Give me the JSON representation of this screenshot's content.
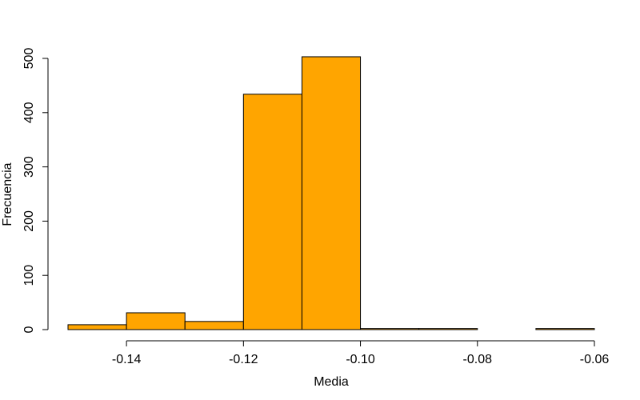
{
  "chart_data": {
    "type": "bar",
    "title": "",
    "xlabel": "Media",
    "ylabel": "Frecuencia",
    "bins": [
      {
        "start": -0.15,
        "end": -0.14,
        "count": 9
      },
      {
        "start": -0.14,
        "end": -0.13,
        "count": 31
      },
      {
        "start": -0.13,
        "end": -0.12,
        "count": 15
      },
      {
        "start": -0.12,
        "end": -0.11,
        "count": 434
      },
      {
        "start": -0.11,
        "end": -0.1,
        "count": 503
      },
      {
        "start": -0.1,
        "end": -0.09,
        "count": 2
      },
      {
        "start": -0.09,
        "end": -0.08,
        "count": 2
      },
      {
        "start": -0.08,
        "end": -0.07,
        "count": 0
      },
      {
        "start": -0.07,
        "end": -0.06,
        "count": 2
      }
    ],
    "xlim": [
      -0.15,
      -0.06
    ],
    "ylim": [
      0,
      500
    ],
    "x_ticks": [
      -0.14,
      -0.12,
      -0.1,
      -0.08,
      -0.06
    ],
    "x_tick_labels": [
      "-0.14",
      "-0.12",
      "-0.10",
      "-0.08",
      "-0.06"
    ],
    "y_ticks": [
      0,
      100,
      200,
      300,
      400,
      500
    ],
    "y_tick_labels": [
      "0",
      "100",
      "200",
      "300",
      "400",
      "500"
    ],
    "grid": false,
    "bar_color": "#FFA500",
    "edge_color": "#000000"
  }
}
